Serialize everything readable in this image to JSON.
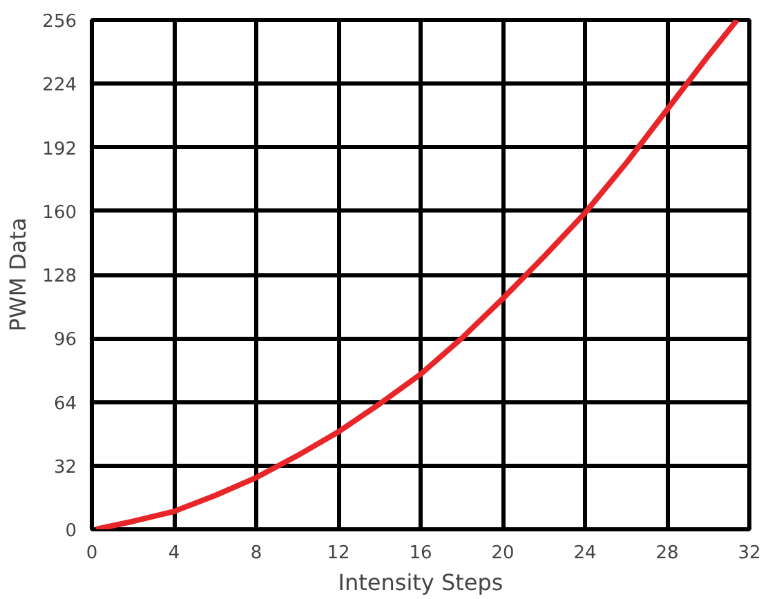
{
  "chart_data": {
    "type": "line",
    "xlabel": "Intensity Steps",
    "ylabel": "PWM Data",
    "x": [
      0.2,
      2,
      4,
      6,
      8,
      10,
      12,
      14,
      16,
      18,
      20,
      22,
      24,
      26,
      28,
      30,
      31.4
    ],
    "series": [
      {
        "color": "#e8262a",
        "values": [
          0,
          4,
          9,
          17,
          26,
          37,
          49,
          63,
          78,
          96,
          116,
          137,
          159,
          184,
          211,
          238,
          256
        ]
      }
    ],
    "xlim": [
      0,
      32
    ],
    "ylim": [
      0,
      256
    ],
    "xticks": [
      0,
      4,
      8,
      12,
      16,
      20,
      24,
      28,
      32
    ],
    "yticks": [
      0,
      32,
      64,
      96,
      128,
      160,
      192,
      224,
      256
    ],
    "grid": true,
    "line_style": "solid"
  }
}
